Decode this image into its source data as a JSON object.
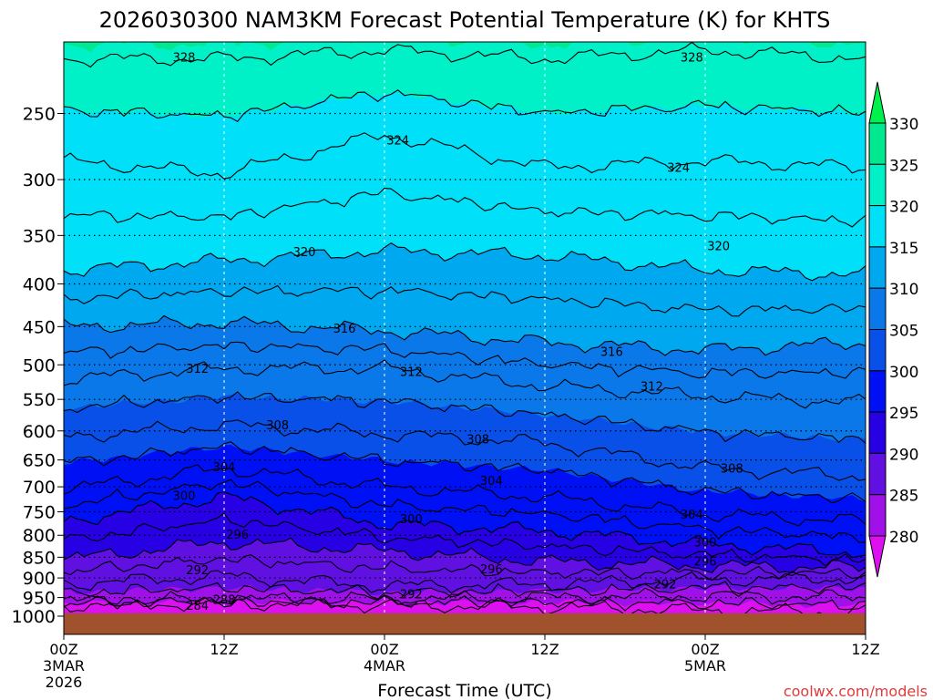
{
  "chart_data": {
    "type": "heatmap",
    "title": "2026030300 NAM3KM Forecast Potential Temperature (K) for KHTS",
    "xlabel": "Forecast Time (UTC)",
    "ylabel": "",
    "watermark": "coolwx.com/models",
    "x_ticks": [
      {
        "hour": 0,
        "label": "00Z",
        "date": "3MAR",
        "year": "2026"
      },
      {
        "hour": 12,
        "label": "12Z",
        "date": "",
        "year": ""
      },
      {
        "hour": 24,
        "label": "00Z",
        "date": "4MAR",
        "year": ""
      },
      {
        "hour": 36,
        "label": "12Z",
        "date": "",
        "year": ""
      },
      {
        "hour": 48,
        "label": "00Z",
        "date": "5MAR",
        "year": ""
      },
      {
        "hour": 60,
        "label": "12Z",
        "date": "",
        "year": ""
      }
    ],
    "xlim": [
      0,
      60
    ],
    "y_ticks": [
      "250",
      "300",
      "350",
      "400",
      "450",
      "500",
      "550",
      "600",
      "650",
      "700",
      "750",
      "800",
      "850",
      "900",
      "950",
      "1000"
    ],
    "ylim": [
      1025,
      200
    ],
    "y_scale": "log",
    "surface_pressure_hpa": 1000,
    "colorbar": {
      "ticks": [
        "280",
        "285",
        "290",
        "295",
        "300",
        "305",
        "310",
        "315",
        "320",
        "325",
        "330"
      ],
      "band_colors": [
        "#dd10f0",
        "#a010e8",
        "#6010e0",
        "#2800e4",
        "#0010f4",
        "#0850e8",
        "#0a78e8",
        "#00a8f0",
        "#00e0f8",
        "#00f0c8",
        "#00e890",
        "#00f04c"
      ]
    },
    "isotherms": [
      {
        "theta": 284,
        "at": [
          [
            0,
            970
          ],
          [
            12,
            965
          ],
          [
            24,
            970
          ],
          [
            36,
            975
          ],
          [
            48,
            985
          ],
          [
            60,
            990
          ]
        ]
      },
      {
        "theta": 288,
        "at": [
          [
            0,
            960
          ],
          [
            12,
            955
          ],
          [
            24,
            955
          ],
          [
            36,
            950
          ],
          [
            48,
            945
          ],
          [
            60,
            950
          ]
        ]
      },
      {
        "theta": 292,
        "at": [
          [
            0,
            915
          ],
          [
            12,
            895
          ],
          [
            24,
            920
          ],
          [
            36,
            915
          ],
          [
            48,
            905
          ],
          [
            60,
            900
          ]
        ]
      },
      {
        "theta": 296,
        "at": [
          [
            0,
            855
          ],
          [
            12,
            815
          ],
          [
            24,
            835
          ],
          [
            36,
            860
          ],
          [
            48,
            870
          ],
          [
            60,
            875
          ]
        ]
      },
      {
        "theta": 300,
        "at": [
          [
            0,
            770
          ],
          [
            12,
            720
          ],
          [
            24,
            775
          ],
          [
            36,
            790
          ],
          [
            48,
            820
          ],
          [
            60,
            840
          ]
        ]
      },
      {
        "theta": 304,
        "at": [
          [
            0,
            705
          ],
          [
            12,
            665
          ],
          [
            24,
            700
          ],
          [
            36,
            720
          ],
          [
            48,
            755
          ],
          [
            60,
            770
          ]
        ]
      },
      {
        "theta": 308,
        "at": [
          [
            0,
            610
          ],
          [
            12,
            590
          ],
          [
            24,
            605
          ],
          [
            36,
            620
          ],
          [
            48,
            665
          ],
          [
            60,
            680
          ]
        ]
      },
      {
        "theta": 312,
        "at": [
          [
            0,
            520
          ],
          [
            12,
            505
          ],
          [
            24,
            505
          ],
          [
            36,
            530
          ],
          [
            48,
            545
          ],
          [
            60,
            555
          ]
        ]
      },
      {
        "theta": 316,
        "at": [
          [
            0,
            450
          ],
          [
            12,
            445
          ],
          [
            24,
            455
          ],
          [
            36,
            470
          ],
          [
            48,
            480
          ],
          [
            60,
            470
          ]
        ]
      },
      {
        "theta": 320,
        "at": [
          [
            0,
            385
          ],
          [
            12,
            375
          ],
          [
            24,
            365
          ],
          [
            36,
            370
          ],
          [
            48,
            385
          ],
          [
            60,
            390
          ]
        ]
      },
      {
        "theta": 324,
        "at": [
          [
            0,
            285
          ],
          [
            12,
            295
          ],
          [
            24,
            265
          ],
          [
            36,
            290
          ],
          [
            48,
            285
          ],
          [
            60,
            290
          ]
        ]
      },
      {
        "theta": 328,
        "at": [
          [
            0,
            215
          ],
          [
            12,
            215
          ],
          [
            24,
            210
          ],
          [
            36,
            215
          ],
          [
            48,
            210
          ],
          [
            60,
            215
          ]
        ]
      }
    ],
    "contour_labels": [
      {
        "text": "328",
        "hour": 9,
        "p": 214
      },
      {
        "text": "328",
        "hour": 47,
        "p": 214
      },
      {
        "text": "324",
        "hour": 25,
        "p": 269
      },
      {
        "text": "324",
        "hour": 46,
        "p": 290
      },
      {
        "text": "320",
        "hour": 18,
        "p": 366
      },
      {
        "text": "320",
        "hour": 49,
        "p": 360
      },
      {
        "text": "316",
        "hour": 21,
        "p": 452
      },
      {
        "text": "316",
        "hour": 41,
        "p": 482
      },
      {
        "text": "312",
        "hour": 10,
        "p": 505
      },
      {
        "text": "312",
        "hour": 26,
        "p": 509
      },
      {
        "text": "312",
        "hour": 44,
        "p": 530
      },
      {
        "text": "308",
        "hour": 16,
        "p": 590
      },
      {
        "text": "308",
        "hour": 31,
        "p": 613
      },
      {
        "text": "308",
        "hour": 50,
        "p": 665
      },
      {
        "text": "304",
        "hour": 12,
        "p": 662
      },
      {
        "text": "304",
        "hour": 32,
        "p": 688
      },
      {
        "text": "304",
        "hour": 47,
        "p": 755
      },
      {
        "text": "300",
        "hour": 9,
        "p": 717
      },
      {
        "text": "300",
        "hour": 26,
        "p": 764
      },
      {
        "text": "300",
        "hour": 48,
        "p": 815
      },
      {
        "text": "296",
        "hour": 13,
        "p": 798
      },
      {
        "text": "296",
        "hour": 32,
        "p": 878
      },
      {
        "text": "296",
        "hour": 48,
        "p": 859
      },
      {
        "text": "292",
        "hour": 10,
        "p": 880
      },
      {
        "text": "292",
        "hour": 26,
        "p": 940
      },
      {
        "text": "292",
        "hour": 45,
        "p": 915
      },
      {
        "text": "288",
        "hour": 12,
        "p": 955
      },
      {
        "text": "284",
        "hour": 10,
        "p": 970
      }
    ]
  }
}
